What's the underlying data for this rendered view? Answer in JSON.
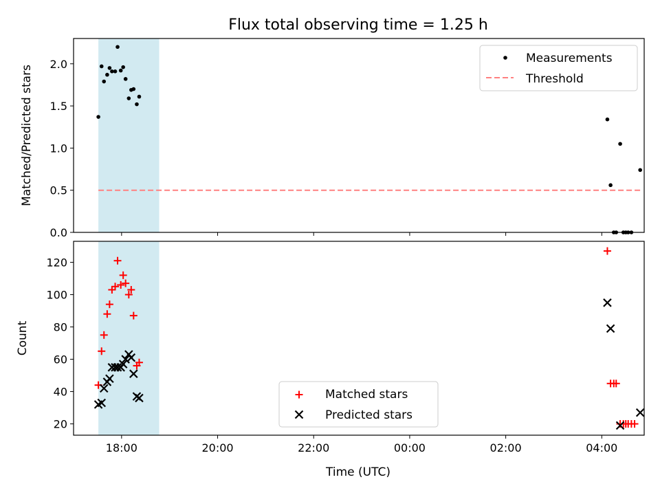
{
  "title": "Flux total observing time = 1.25 h",
  "xlabel": "Time (UTC)",
  "x_ticks": [
    "18:00",
    "20:00",
    "22:00",
    "00:00",
    "02:00",
    "04:00"
  ],
  "shaded_interval": {
    "start": "17:31",
    "end": "18:47",
    "color": "#add8e6"
  },
  "colors": {
    "measurement": "#000000",
    "threshold": "#ff8080",
    "matched": "#ff0000",
    "predicted": "#000000"
  },
  "chart_data": [
    {
      "type": "scatter",
      "ylabel": "Matched/Predicted stars",
      "ylim": [
        0,
        2.3
      ],
      "yticks": [
        "0.0",
        "0.5",
        "1.0",
        "1.5",
        "2.0"
      ],
      "xlim": [
        "17:00",
        "04:53"
      ],
      "legend_placement": "top-right",
      "threshold": {
        "name": "Threshold",
        "value": 0.5,
        "x_range": [
          "17:31",
          "04:48"
        ],
        "style": "dashed"
      },
      "series": [
        {
          "name": "Measurements",
          "points": [
            [
              "17:31",
              1.37
            ],
            [
              "17:35",
              1.97
            ],
            [
              "17:38",
              1.79
            ],
            [
              "17:42",
              1.87
            ],
            [
              "17:45",
              1.95
            ],
            [
              "17:48",
              1.91
            ],
            [
              "17:52",
              1.91
            ],
            [
              "17:55",
              2.2
            ],
            [
              "17:59",
              1.92
            ],
            [
              "18:02",
              1.96
            ],
            [
              "18:05",
              1.82
            ],
            [
              "18:09",
              1.59
            ],
            [
              "18:12",
              1.69
            ],
            [
              "18:15",
              1.7
            ],
            [
              "18:19",
              1.52
            ],
            [
              "18:22",
              1.61
            ],
            [
              "04:07",
              1.34
            ],
            [
              "04:11",
              0.56
            ],
            [
              "04:15",
              0.0
            ],
            [
              "04:18",
              0.0
            ],
            [
              "04:23",
              1.05
            ],
            [
              "04:27",
              0.0
            ],
            [
              "04:30",
              0.0
            ],
            [
              "04:33",
              0.0
            ],
            [
              "04:37",
              0.0
            ],
            [
              "04:48",
              0.74
            ]
          ]
        }
      ]
    },
    {
      "type": "scatter",
      "ylabel": "Count",
      "ylim": [
        13,
        133
      ],
      "yticks": [
        "20",
        "40",
        "60",
        "80",
        "100",
        "120"
      ],
      "xlim": [
        "17:00",
        "04:53"
      ],
      "legend_placement": "bottom-center",
      "series": [
        {
          "name": "Matched stars",
          "marker": "plus",
          "points": [
            [
              "17:31",
              44
            ],
            [
              "17:35",
              65
            ],
            [
              "17:38",
              75
            ],
            [
              "17:42",
              88
            ],
            [
              "17:45",
              94
            ],
            [
              "17:48",
              103
            ],
            [
              "17:52",
              105
            ],
            [
              "17:55",
              121
            ],
            [
              "17:59",
              106
            ],
            [
              "18:02",
              112
            ],
            [
              "18:05",
              107
            ],
            [
              "18:09",
              100
            ],
            [
              "18:12",
              103
            ],
            [
              "18:15",
              87
            ],
            [
              "18:19",
              56
            ],
            [
              "18:22",
              58
            ],
            [
              "04:07",
              127
            ],
            [
              "04:11",
              45
            ],
            [
              "04:15",
              45
            ],
            [
              "04:18",
              45
            ],
            [
              "04:23",
              20
            ],
            [
              "04:27",
              20
            ],
            [
              "04:30",
              20
            ],
            [
              "04:33",
              20
            ],
            [
              "04:37",
              20
            ],
            [
              "04:41",
              20
            ]
          ]
        },
        {
          "name": "Predicted stars",
          "marker": "x",
          "points": [
            [
              "17:31",
              32
            ],
            [
              "17:35",
              33
            ],
            [
              "17:38",
              42
            ],
            [
              "17:42",
              46
            ],
            [
              "17:45",
              48
            ],
            [
              "17:48",
              55
            ],
            [
              "17:52",
              55
            ],
            [
              "17:55",
              55
            ],
            [
              "17:59",
              55
            ],
            [
              "18:02",
              57
            ],
            [
              "18:05",
              60
            ],
            [
              "18:09",
              63
            ],
            [
              "18:12",
              61
            ],
            [
              "18:15",
              51
            ],
            [
              "18:19",
              37
            ],
            [
              "18:22",
              36
            ],
            [
              "04:07",
              95
            ],
            [
              "04:11",
              79
            ],
            [
              "04:23",
              19
            ],
            [
              "04:48",
              27
            ]
          ]
        }
      ]
    }
  ]
}
